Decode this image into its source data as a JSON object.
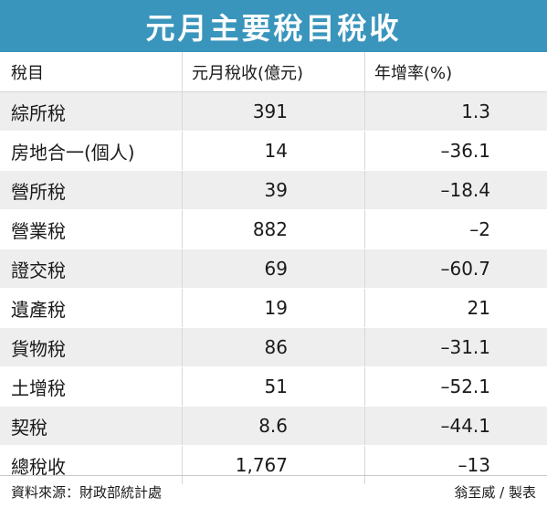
{
  "chart_data": {
    "type": "table",
    "title": "元月主要稅目稅收",
    "columns": [
      "稅目",
      "元月稅收(億元)",
      "年增率(%)"
    ],
    "rows": [
      {
        "name": "綜所稅",
        "revenue": "391",
        "growth": "1.3"
      },
      {
        "name": "房地合一(個人)",
        "revenue": "14",
        "growth": "–36.1"
      },
      {
        "name": "營所稅",
        "revenue": "39",
        "growth": "–18.4"
      },
      {
        "name": "營業稅",
        "revenue": "882",
        "growth": "–2"
      },
      {
        "name": "證交稅",
        "revenue": "69",
        "growth": "–60.7"
      },
      {
        "name": "遺產稅",
        "revenue": "19",
        "growth": "21"
      },
      {
        "name": "貨物稅",
        "revenue": "86",
        "growth": "–31.1"
      },
      {
        "name": "土增稅",
        "revenue": "51",
        "growth": "–52.1"
      },
      {
        "name": "契稅",
        "revenue": "8.6",
        "growth": "–44.1"
      },
      {
        "name": "總稅收",
        "revenue": "1,767",
        "growth": "–13"
      }
    ]
  },
  "footer": {
    "source": "資料來源：財政部統計處",
    "credit": "翁至威 / 製表"
  },
  "colors": {
    "title_background": "#3a95bc",
    "title_text": "#ffffff",
    "row_shading": "#eeeeee"
  }
}
